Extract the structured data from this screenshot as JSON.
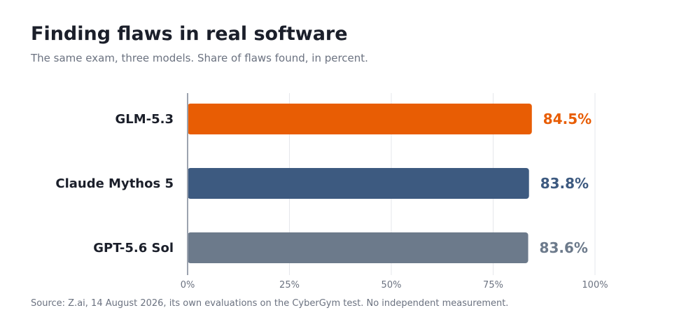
{
  "title": "Finding flaws in real software",
  "subtitle": "The same exam, three models. Share of flaws found, in percent.",
  "source": "Source: Z.ai, 14 August 2026, its own evaluations on the CyberGym test. No independent measurement.",
  "colors": {
    "grid": "#e5e7eb",
    "axis": "#9ca3af",
    "category_text": "#1b1f2a",
    "tick_text": "#6b7280"
  },
  "chart_data": {
    "type": "bar",
    "orientation": "horizontal",
    "categories": [
      "GLM-5.3",
      "Claude Mythos 5",
      "GPT-5.6 Sol"
    ],
    "values": [
      84.5,
      83.8,
      83.6
    ],
    "value_labels": [
      "84.5%",
      "83.8%",
      "83.6%"
    ],
    "colors": [
      "#e85d04",
      "#3d5a80",
      "#6c7a8b"
    ],
    "xlim": [
      0,
      100
    ],
    "xticks": [
      0,
      25,
      50,
      75,
      100
    ],
    "xtick_labels": [
      "0%",
      "25%",
      "50%",
      "75%",
      "100%"
    ],
    "grid": true,
    "legend": "none",
    "title": "Finding flaws in real software",
    "xlabel": "",
    "ylabel": ""
  }
}
